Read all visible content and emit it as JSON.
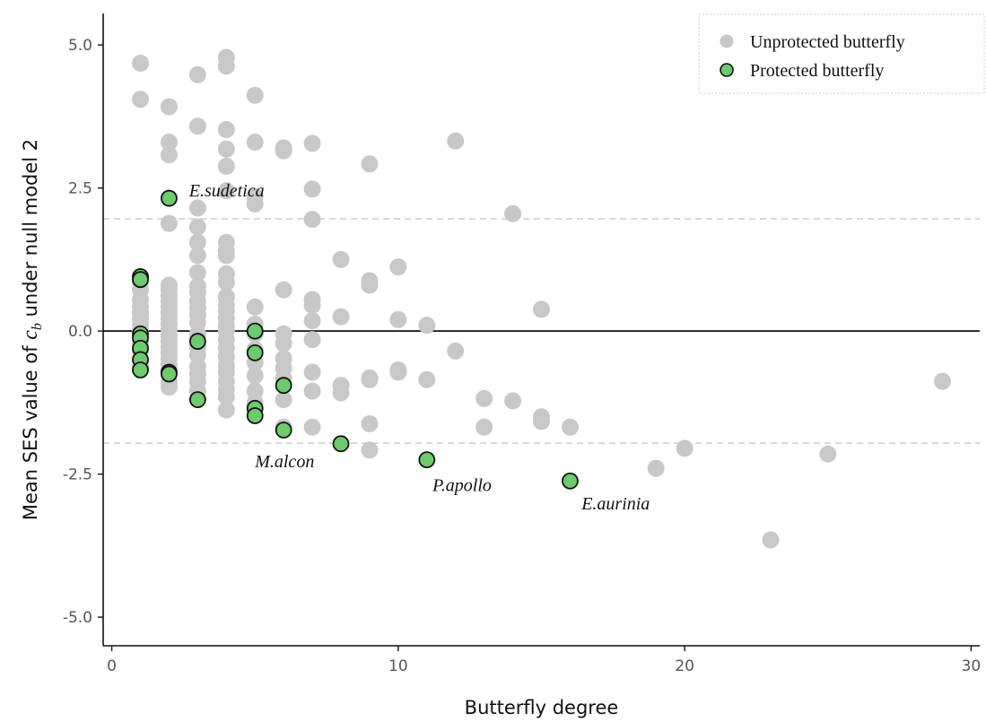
{
  "chart_data": {
    "type": "scatter",
    "xlabel": "Butterfly degree",
    "ylabel": {
      "before": "Mean SES value of ",
      "symbol": "c",
      "subscript": "b",
      "after": " under null model 2"
    },
    "xlim": [
      -0.3,
      30.3
    ],
    "ylim": [
      -5.5,
      5.55
    ],
    "x_ticks": [
      {
        "value": 0,
        "label": "0"
      },
      {
        "value": 10,
        "label": "10"
      },
      {
        "value": 20,
        "label": "20"
      },
      {
        "value": 30,
        "label": "30"
      }
    ],
    "y_ticks": [
      {
        "value": 5,
        "label": "5.0"
      },
      {
        "value": 2.5,
        "label": "2.5"
      },
      {
        "value": 0,
        "label": "0.0"
      },
      {
        "value": -2.5,
        "label": "-2.5"
      },
      {
        "value": -5,
        "label": "-5.0"
      }
    ],
    "grid": false,
    "reference_lines": [
      {
        "y": 1.96,
        "style": "dashed",
        "color": "#cccccc"
      },
      {
        "y": 0,
        "style": "solid",
        "color": "#000000"
      },
      {
        "y": -1.96,
        "style": "dashed",
        "color": "#cccccc"
      }
    ],
    "legend": {
      "position": "top-right",
      "entries": [
        {
          "series": 0,
          "label": "Unprotected butterfly"
        },
        {
          "series": 1,
          "label": "Protected butterfly"
        }
      ]
    },
    "series": [
      {
        "name": "Unprotected butterfly",
        "color": "#c8c8c8",
        "outline": "none",
        "points": [
          [
            1,
            4.68
          ],
          [
            1,
            4.05
          ],
          [
            1,
            0.95
          ],
          [
            1,
            0.85
          ],
          [
            1,
            0.72
          ],
          [
            1,
            0.55
          ],
          [
            1,
            0.42
          ],
          [
            1,
            0.32
          ],
          [
            1,
            0.22
          ],
          [
            1,
            0.12
          ],
          [
            1,
            0.02
          ],
          [
            1,
            -0.08
          ],
          [
            1,
            -0.2
          ],
          [
            1,
            -0.35
          ],
          [
            1,
            -0.5
          ],
          [
            1,
            -0.62
          ],
          [
            2,
            3.92
          ],
          [
            2,
            3.3
          ],
          [
            2,
            3.08
          ],
          [
            2,
            1.88
          ],
          [
            2,
            0.8
          ],
          [
            2,
            0.72
          ],
          [
            2,
            0.62
          ],
          [
            2,
            0.52
          ],
          [
            2,
            0.42
          ],
          [
            2,
            0.32
          ],
          [
            2,
            0.22
          ],
          [
            2,
            0.12
          ],
          [
            2,
            0.02
          ],
          [
            2,
            -0.08
          ],
          [
            2,
            -0.18
          ],
          [
            2,
            -0.28
          ],
          [
            2,
            -0.38
          ],
          [
            2,
            -0.48
          ],
          [
            2,
            -0.58
          ],
          [
            2,
            -0.68
          ],
          [
            2,
            -0.88
          ],
          [
            2,
            -0.98
          ],
          [
            3,
            4.48
          ],
          [
            3,
            3.58
          ],
          [
            3,
            2.15
          ],
          [
            3,
            1.82
          ],
          [
            3,
            1.55
          ],
          [
            3,
            1.32
          ],
          [
            3,
            1.02
          ],
          [
            3,
            0.78
          ],
          [
            3,
            0.68
          ],
          [
            3,
            0.52
          ],
          [
            3,
            0.4
          ],
          [
            3,
            0.28
          ],
          [
            3,
            0.15
          ],
          [
            3,
            -0.05
          ],
          [
            3,
            -0.28
          ],
          [
            3,
            -0.42
          ],
          [
            3,
            -0.62
          ],
          [
            3,
            -0.75
          ],
          [
            3,
            -0.88
          ],
          [
            3,
            -1.05
          ],
          [
            4,
            4.78
          ],
          [
            4,
            4.63
          ],
          [
            4,
            3.52
          ],
          [
            4,
            3.18
          ],
          [
            4,
            2.88
          ],
          [
            4,
            2.45
          ],
          [
            4,
            1.55
          ],
          [
            4,
            1.4
          ],
          [
            4,
            1.32
          ],
          [
            4,
            1.0
          ],
          [
            4,
            0.85
          ],
          [
            4,
            0.6
          ],
          [
            4,
            0.45
          ],
          [
            4,
            0.35
          ],
          [
            4,
            0.22
          ],
          [
            4,
            0.1
          ],
          [
            4,
            0.0
          ],
          [
            4,
            -0.15
          ],
          [
            4,
            -0.3
          ],
          [
            4,
            -0.45
          ],
          [
            4,
            -0.6
          ],
          [
            4,
            -0.72
          ],
          [
            4,
            -0.88
          ],
          [
            4,
            -1.02
          ],
          [
            4,
            -1.15
          ],
          [
            4,
            -1.38
          ],
          [
            5,
            4.12
          ],
          [
            5,
            3.3
          ],
          [
            5,
            2.35
          ],
          [
            5,
            2.22
          ],
          [
            5,
            0.42
          ],
          [
            5,
            0.12
          ],
          [
            5,
            -0.05
          ],
          [
            5,
            -0.32
          ],
          [
            5,
            -0.55
          ],
          [
            5,
            -0.78
          ],
          [
            5,
            -1.05
          ],
          [
            5,
            -1.25
          ],
          [
            6,
            3.2
          ],
          [
            6,
            3.15
          ],
          [
            6,
            0.72
          ],
          [
            6,
            -0.05
          ],
          [
            6,
            -0.22
          ],
          [
            6,
            -0.48
          ],
          [
            6,
            -0.65
          ],
          [
            6,
            -0.82
          ],
          [
            6,
            -1.2
          ],
          [
            6,
            -1.68
          ],
          [
            7,
            3.28
          ],
          [
            7,
            2.48
          ],
          [
            7,
            1.95
          ],
          [
            7,
            0.55
          ],
          [
            7,
            0.45
          ],
          [
            7,
            0.18
          ],
          [
            7,
            -0.15
          ],
          [
            7,
            -0.72
          ],
          [
            7,
            -1.05
          ],
          [
            7,
            -1.68
          ],
          [
            8,
            1.25
          ],
          [
            8,
            0.25
          ],
          [
            8,
            -0.95
          ],
          [
            8,
            -1.08
          ],
          [
            9,
            2.92
          ],
          [
            9,
            0.88
          ],
          [
            9,
            0.8
          ],
          [
            9,
            -0.82
          ],
          [
            9,
            -0.85
          ],
          [
            9,
            -1.62
          ],
          [
            9,
            -2.08
          ],
          [
            10,
            1.12
          ],
          [
            10,
            0.2
          ],
          [
            10,
            -0.68
          ],
          [
            10,
            -0.72
          ],
          [
            11,
            0.1
          ],
          [
            11,
            -0.85
          ],
          [
            12,
            3.32
          ],
          [
            12,
            -0.35
          ],
          [
            13,
            -1.18
          ],
          [
            13,
            -1.68
          ],
          [
            14,
            2.05
          ],
          [
            14,
            -1.22
          ],
          [
            15,
            0.38
          ],
          [
            15,
            -1.5
          ],
          [
            15,
            -1.58
          ],
          [
            16,
            -1.68
          ],
          [
            19,
            -2.4
          ],
          [
            20,
            -2.05
          ],
          [
            23,
            -3.65
          ],
          [
            25,
            -2.15
          ],
          [
            29,
            -0.88
          ]
        ]
      },
      {
        "name": "Protected butterfly",
        "color": "#6ccb6c",
        "outline": "#111111",
        "points": [
          [
            1,
            0.95
          ],
          [
            1,
            0.9
          ],
          [
            1,
            -0.05
          ],
          [
            1,
            -0.12
          ],
          [
            1,
            -0.3
          ],
          [
            1,
            -0.5
          ],
          [
            1,
            -0.68
          ],
          [
            2,
            2.32
          ],
          [
            2,
            -0.72
          ],
          [
            2,
            -0.75
          ],
          [
            3,
            -0.18
          ],
          [
            3,
            -1.2
          ],
          [
            5,
            0.0
          ],
          [
            5,
            -0.38
          ],
          [
            5,
            -1.35
          ],
          [
            5,
            -1.48
          ],
          [
            6,
            -0.95
          ],
          [
            6,
            -1.73
          ],
          [
            8,
            -1.97
          ],
          [
            11,
            -2.25
          ],
          [
            16,
            -2.62
          ]
        ]
      }
    ],
    "annotations": [
      {
        "text": "E.sudetica",
        "x": 2.7,
        "y": 2.35
      },
      {
        "text": "M.alcon",
        "x": 5.0,
        "y": -2.38
      },
      {
        "text": "P.apollo",
        "x": 11.2,
        "y": -2.8
      },
      {
        "text": "E.aurinia",
        "x": 16.4,
        "y": -3.12
      }
    ]
  }
}
